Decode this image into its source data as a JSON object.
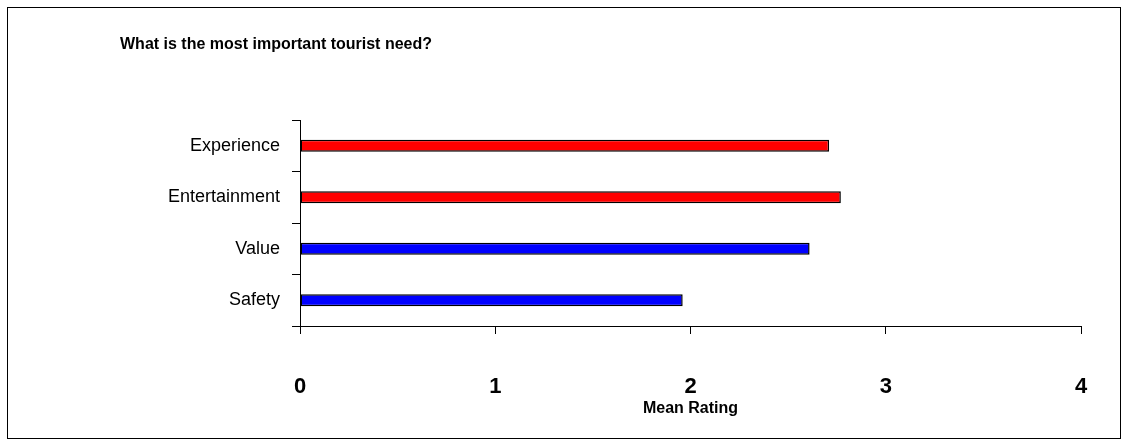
{
  "chart_data": {
    "type": "bar",
    "orientation": "horizontal",
    "title": "What is the most important tourist need?",
    "xlabel": "Mean Rating",
    "categories": [
      "Experience",
      "Entertainment",
      "Value",
      "Safety"
    ],
    "values": [
      2.71,
      2.77,
      2.61,
      1.96
    ],
    "colors": [
      "#ff0000",
      "#ff0000",
      "#0000ff",
      "#0000ff"
    ],
    "xlim": [
      0,
      4
    ],
    "xticks": [
      0,
      1,
      2,
      3,
      4
    ],
    "grid": false,
    "legend": false
  }
}
